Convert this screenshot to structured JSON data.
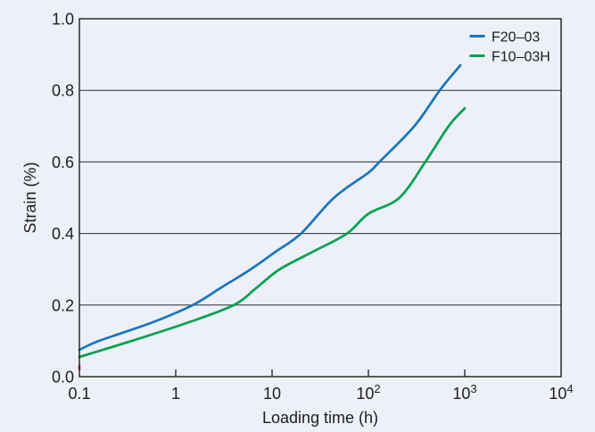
{
  "page": {
    "background_color": "#edf0f8",
    "text_color": "#1d1d1b",
    "axis_color": "#1d1d1b",
    "grid_color": "#2e2e2e"
  },
  "chart_data": {
    "type": "line",
    "title": "",
    "xlabel": "Loading time (h)",
    "ylabel": "Strain (%)",
    "xscale": "log",
    "xlim": [
      0.1,
      10000
    ],
    "ylim": [
      0.0,
      1.0
    ],
    "grid": "horizontal-only",
    "legend_position": "top-right-inside",
    "x_ticks": [
      {
        "value": 0.1,
        "label": "0.1"
      },
      {
        "value": 1,
        "label": "1"
      },
      {
        "value": 10,
        "label": "10"
      },
      {
        "value": 100,
        "label": "10^2"
      },
      {
        "value": 1000,
        "label": "10^3"
      },
      {
        "value": 10000,
        "label": "10^4"
      }
    ],
    "y_ticks": [
      {
        "value": 0.0,
        "label": "0.0"
      },
      {
        "value": 0.2,
        "label": "0.2"
      },
      {
        "value": 0.4,
        "label": "0.4"
      },
      {
        "value": 0.6,
        "label": "0.6"
      },
      {
        "value": 0.8,
        "label": "0.8"
      },
      {
        "value": 1.0,
        "label": "1.0"
      }
    ],
    "series": [
      {
        "name": "F20–03",
        "color": "#1a75bb",
        "points": [
          [
            0.1,
            0.075
          ],
          [
            0.16,
            0.1
          ],
          [
            0.55,
            0.15
          ],
          [
            1.5,
            0.2
          ],
          [
            3,
            0.25
          ],
          [
            6,
            0.3
          ],
          [
            11,
            0.35
          ],
          [
            20,
            0.4
          ],
          [
            44,
            0.5
          ],
          [
            100,
            0.57
          ],
          [
            130,
            0.6
          ],
          [
            300,
            0.7
          ],
          [
            550,
            0.8
          ],
          [
            900,
            0.87
          ]
        ]
      },
      {
        "name": "F10–03H",
        "color": "#00a24f",
        "points": [
          [
            0.1,
            0.055
          ],
          [
            0.35,
            0.1
          ],
          [
            1.3,
            0.15
          ],
          [
            4,
            0.2
          ],
          [
            7,
            0.25
          ],
          [
            12,
            0.3
          ],
          [
            27,
            0.35
          ],
          [
            60,
            0.4
          ],
          [
            100,
            0.455
          ],
          [
            210,
            0.5
          ],
          [
            390,
            0.6
          ],
          [
            680,
            0.7
          ],
          [
            1000,
            0.75
          ]
        ]
      }
    ],
    "annotations": [
      {
        "name": "red-axis-marker",
        "color": "#e23b33",
        "x": 0.1,
        "y": 0.026
      }
    ]
  }
}
